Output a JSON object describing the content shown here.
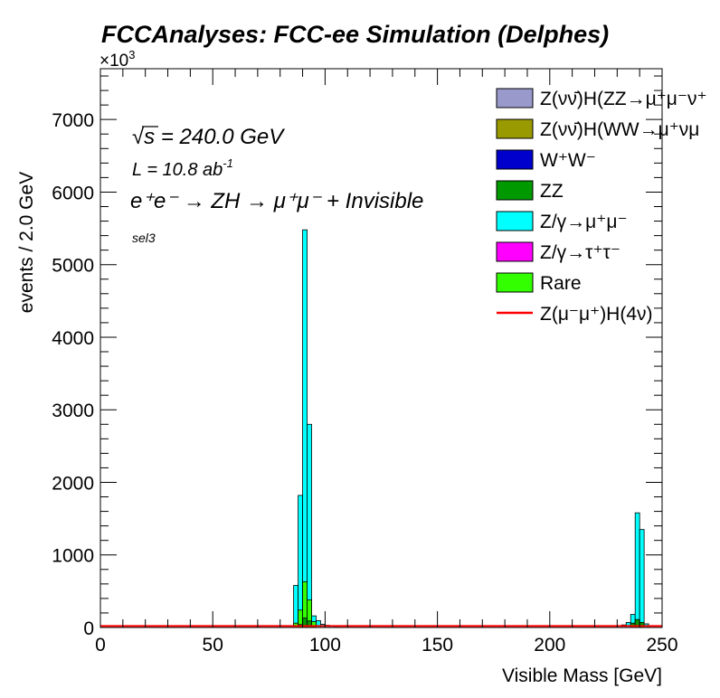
{
  "chart_data": {
    "type": "bar",
    "title": "FCCAnalyses: FCC-ee Simulation (Delphes)",
    "xlabel": "Visible Mass [GeV]",
    "ylabel": "events / 2.0 GeV",
    "y_multiplier": "×10",
    "y_multiplier_exp": "3",
    "xlim": [
      0,
      250
    ],
    "ylim": [
      0,
      7700
    ],
    "x_ticks": [
      "0",
      "50",
      "100",
      "150",
      "200",
      "250"
    ],
    "y_ticks": [
      "0",
      "1000",
      "2000",
      "3000",
      "4000",
      "5000",
      "6000",
      "7000"
    ],
    "bin_width": 2.0,
    "annotations": {
      "sqrt_s": "√s",
      "energy": " = 240.0 GeV",
      "lumi_prefix": "L = 10.8 ab",
      "lumi_exp": "-1",
      "process": "e⁺e⁻ → ZH → μ⁺μ⁻ + Invisible",
      "selection": "sel3"
    },
    "legend": [
      {
        "label": "Z(νν̄)H(ZZ→μ⁺μ⁻ν⁺",
        "color": "#9999cc",
        "kind": "fill"
      },
      {
        "label": "Z(νν̄)H(WW→μ⁺νμ",
        "color": "#999900",
        "kind": "fill"
      },
      {
        "label": "W⁺W⁻",
        "color": "#0000cc",
        "kind": "fill"
      },
      {
        "label": "ZZ",
        "color": "#009900",
        "kind": "fill"
      },
      {
        "label": "Z/γ→μ⁺μ⁻",
        "color": "#00ffff",
        "kind": "fill"
      },
      {
        "label": "Z/γ→τ⁺τ⁻",
        "color": "#ff00ff",
        "kind": "fill"
      },
      {
        "label": "Rare",
        "color": "#33ff00",
        "kind": "fill"
      },
      {
        "label": "Z(μ⁻μ⁺)H(4ν)",
        "color": "#ff0000",
        "kind": "line"
      }
    ],
    "series": [
      {
        "name": "Z/γ→μ⁺μ⁻",
        "color": "#00ffff",
        "x": [
          86,
          88,
          90,
          92,
          94,
          96,
          98,
          100,
          102,
          104,
          230,
          232,
          234,
          236,
          238,
          240,
          242
        ],
        "values": [
          580,
          1820,
          5480,
          2800,
          160,
          95,
          45,
          30,
          20,
          12,
          25,
          35,
          70,
          180,
          1580,
          1350,
          50
        ]
      },
      {
        "name": "Rare",
        "color": "#33ff00",
        "x": [
          86,
          88,
          90,
          92,
          94
        ],
        "values": [
          60,
          240,
          630,
          380,
          80
        ]
      },
      {
        "name": "ZZ",
        "color": "#009900",
        "x": [
          88,
          90,
          92,
          94,
          236,
          238,
          240
        ],
        "values": [
          40,
          130,
          90,
          15,
          60,
          110,
          70
        ]
      },
      {
        "name": "Z(μ⁻μ⁺)H(4ν)",
        "color": "#ff0000",
        "x": [
          0,
          240
        ],
        "values": [
          20,
          20
        ]
      }
    ]
  }
}
